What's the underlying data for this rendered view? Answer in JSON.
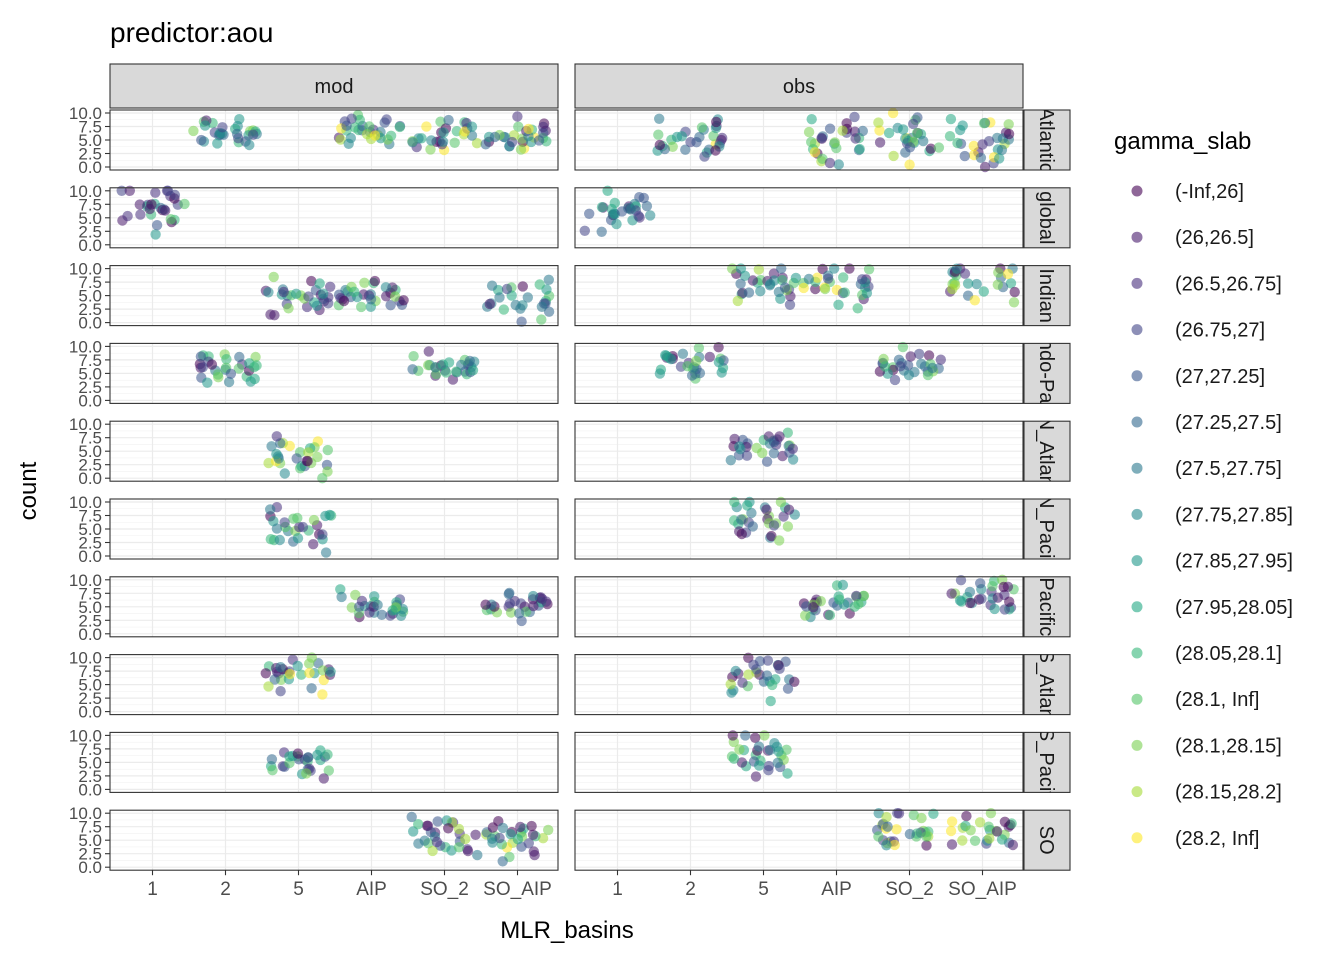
{
  "title": "predictor:aou",
  "chart_data": {
    "type": "scatter",
    "title": "predictor:aou",
    "xlabel": "MLR_basins",
    "ylabel": "count",
    "x_categories": [
      "1",
      "2",
      "5",
      "AIP",
      "SO_2",
      "SO_AIP"
    ],
    "y_ticks": [
      "0.0",
      "2.5",
      "5.0",
      "7.5",
      "10.0"
    ],
    "ylim": [
      0,
      10
    ],
    "grid": true,
    "jitter": true,
    "facet_columns": [
      "mod",
      "obs"
    ],
    "facet_rows": [
      "Atlantic",
      "global",
      "Indian",
      "Indo-Pac",
      "N_Atlan",
      "N_Pacif",
      "Pacific",
      "S_Atlan",
      "S_Pacif",
      "SO"
    ],
    "legend": {
      "title": "gamma_slab",
      "position": "right",
      "entries": [
        "(-Inf,26]",
        "(26,26.5]",
        "(26.5,26.75]",
        "(26.75,27]",
        "(27,27.25]",
        "(27.25,27.5]",
        "(27.5,27.75]",
        "(27.75,27.85]",
        "(27.85,27.95]",
        "(27.95,28.05]",
        "(28.05,28.1]",
        "(28.1, Inf]",
        "(28.1,28.15]",
        "(28.15,28.2]",
        "(28.2, Inf]"
      ],
      "colors": [
        "#440154",
        "#481A6C",
        "#472F7D",
        "#414487",
        "#39568C",
        "#31688E",
        "#2A788E",
        "#23888E",
        "#1F988B",
        "#22A884",
        "#35B779",
        "#54C568",
        "#7AD151",
        "#A5DB36",
        "#FDE725"
      ]
    },
    "panels": [
      {
        "source": "mod",
        "basin": "Atlantic",
        "clusters": [
          {
            "x": "2",
            "y_min": 4.5,
            "y_max": 8.0,
            "levels": [
              0,
              14
            ]
          },
          {
            "x": "AIP",
            "y_min": 4.5,
            "y_max": 8.5,
            "levels": [
              0,
              14
            ]
          },
          {
            "x": "SO_2",
            "y_min": 4.0,
            "y_max": 8.0,
            "levels": [
              0,
              14
            ]
          },
          {
            "x": "SO_AIP",
            "y_min": 3.5,
            "y_max": 8.0,
            "levels": [
              0,
              14
            ]
          }
        ]
      },
      {
        "source": "obs",
        "basin": "Atlantic",
        "clusters": [
          {
            "x": "2",
            "y_min": 2.0,
            "y_max": 8.0,
            "levels": [
              0,
              14
            ]
          },
          {
            "x": "AIP",
            "y_min": 2.5,
            "y_max": 8.5,
            "levels": [
              0,
              14
            ]
          },
          {
            "x": "SO_2",
            "y_min": 2.0,
            "y_max": 8.0,
            "levels": [
              0,
              14
            ]
          },
          {
            "x": "SO_AIP",
            "y_min": 2.0,
            "y_max": 8.5,
            "levels": [
              0,
              14
            ]
          }
        ]
      },
      {
        "source": "mod",
        "basin": "global",
        "clusters": [
          {
            "x": "1",
            "y_min": 4.0,
            "y_max": 10.0,
            "levels": [
              0,
              11
            ]
          }
        ]
      },
      {
        "source": "obs",
        "basin": "global",
        "clusters": [
          {
            "x": "1",
            "y_min": 3.5,
            "y_max": 8.5,
            "levels": [
              0,
              11
            ]
          }
        ]
      },
      {
        "source": "mod",
        "basin": "Indian",
        "clusters": [
          {
            "x": "5",
            "y_min": 2.5,
            "y_max": 7.5,
            "levels": [
              0,
              12
            ]
          },
          {
            "x": "AIP",
            "y_min": 3.0,
            "y_max": 7.5,
            "levels": [
              0,
              12
            ]
          },
          {
            "x": "SO_AIP",
            "y_min": 1.0,
            "y_max": 7.5,
            "levels": [
              0,
              12
            ]
          }
        ]
      },
      {
        "source": "obs",
        "basin": "Indian",
        "clusters": [
          {
            "x": "5",
            "y_min": 4.5,
            "y_max": 10.0,
            "levels": [
              0,
              14
            ]
          },
          {
            "x": "AIP",
            "y_min": 4.5,
            "y_max": 10.0,
            "levels": [
              0,
              14
            ]
          },
          {
            "x": "SO_AIP",
            "y_min": 4.5,
            "y_max": 10.0,
            "levels": [
              0,
              14
            ]
          }
        ]
      },
      {
        "source": "mod",
        "basin": "Indo-Pac",
        "clusters": [
          {
            "x": "2",
            "y_min": 3.5,
            "y_max": 8.0,
            "levels": [
              0,
              12
            ]
          },
          {
            "x": "SO_2",
            "y_min": 3.5,
            "y_max": 8.0,
            "levels": [
              0,
              12
            ]
          }
        ]
      },
      {
        "source": "obs",
        "basin": "Indo-Pac",
        "clusters": [
          {
            "x": "2",
            "y_min": 4.5,
            "y_max": 8.5,
            "levels": [
              0,
              12
            ]
          },
          {
            "x": "SO_2",
            "y_min": 4.5,
            "y_max": 9.0,
            "levels": [
              0,
              12
            ]
          }
        ]
      },
      {
        "source": "mod",
        "basin": "N_Atlan",
        "clusters": [
          {
            "x": "5",
            "y_min": 1.5,
            "y_max": 8.0,
            "levels": [
              0,
              14
            ]
          }
        ]
      },
      {
        "source": "obs",
        "basin": "N_Atlan",
        "clusters": [
          {
            "x": "5",
            "y_min": 3.5,
            "y_max": 8.0,
            "levels": [
              0,
              12
            ]
          }
        ]
      },
      {
        "source": "mod",
        "basin": "N_Pacif",
        "clusters": [
          {
            "x": "5",
            "y_min": 2.5,
            "y_max": 8.0,
            "levels": [
              0,
              12
            ]
          }
        ]
      },
      {
        "source": "obs",
        "basin": "N_Pacif",
        "clusters": [
          {
            "x": "5",
            "y_min": 3.5,
            "y_max": 9.5,
            "levels": [
              0,
              12
            ]
          }
        ]
      },
      {
        "source": "mod",
        "basin": "Pacific",
        "clusters": [
          {
            "x": "AIP",
            "y_min": 3.0,
            "y_max": 7.0,
            "levels": [
              0,
              12
            ]
          },
          {
            "x": "SO_AIP",
            "y_min": 3.5,
            "y_max": 7.5,
            "levels": [
              0,
              12
            ]
          }
        ]
      },
      {
        "source": "obs",
        "basin": "Pacific",
        "clusters": [
          {
            "x": "AIP",
            "y_min": 4.0,
            "y_max": 8.0,
            "levels": [
              0,
              12
            ]
          },
          {
            "x": "SO_AIP",
            "y_min": 5.0,
            "y_max": 9.5,
            "levels": [
              0,
              12
            ]
          }
        ]
      },
      {
        "source": "mod",
        "basin": "S_Atlan",
        "clusters": [
          {
            "x": "5",
            "y_min": 4.0,
            "y_max": 10.0,
            "levels": [
              0,
              14
            ]
          }
        ]
      },
      {
        "source": "obs",
        "basin": "S_Atlan",
        "clusters": [
          {
            "x": "5",
            "y_min": 4.0,
            "y_max": 10.0,
            "levels": [
              0,
              14
            ]
          }
        ]
      },
      {
        "source": "mod",
        "basin": "S_Pacif",
        "clusters": [
          {
            "x": "5",
            "y_min": 3.0,
            "y_max": 7.5,
            "levels": [
              0,
              12
            ]
          }
        ]
      },
      {
        "source": "obs",
        "basin": "S_Pacif",
        "clusters": [
          {
            "x": "5",
            "y_min": 2.5,
            "y_max": 10.0,
            "levels": [
              0,
              12
            ]
          }
        ]
      },
      {
        "source": "mod",
        "basin": "SO",
        "clusters": [
          {
            "x": "SO_2",
            "y_min": 3.0,
            "y_max": 8.0,
            "levels": [
              0,
              14
            ]
          },
          {
            "x": "SO_AIP",
            "y_min": 1.5,
            "y_max": 8.0,
            "levels": [
              0,
              14
            ]
          }
        ]
      },
      {
        "source": "obs",
        "basin": "SO",
        "clusters": [
          {
            "x": "SO_2",
            "y_min": 4.0,
            "y_max": 10.0,
            "levels": [
              0,
              14
            ]
          },
          {
            "x": "SO_AIP",
            "y_min": 4.0,
            "y_max": 10.0,
            "levels": [
              0,
              14
            ]
          }
        ]
      }
    ]
  },
  "strip_labels": {
    "columns": [
      "mod",
      "obs"
    ],
    "rows": [
      "Atlantic",
      "global",
      "Indian",
      "Indo-Pac",
      "N_Atlan",
      "N_Pacif",
      "Pacific",
      "S_Atlan",
      "S_Pacif",
      "SO"
    ]
  }
}
